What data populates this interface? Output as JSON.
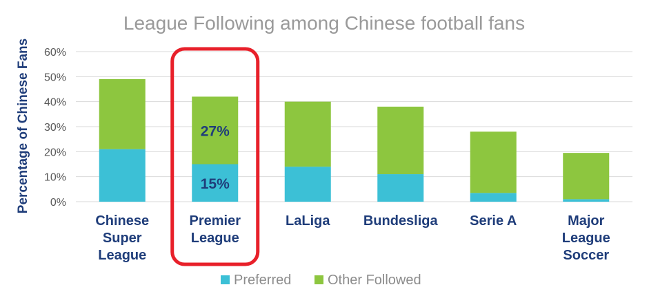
{
  "chart_data": {
    "type": "bar",
    "stacked": true,
    "title": "League Following among Chinese football fans",
    "ylabel": "Percentage of Chinese Fans",
    "xlabel": "",
    "ylim": [
      0,
      60
    ],
    "yticks": [
      "0%",
      "10%",
      "20%",
      "30%",
      "40%",
      "50%",
      "60%"
    ],
    "grid": true,
    "legend_position": "bottom",
    "categories": [
      [
        "Chinese",
        "Super",
        "League"
      ],
      [
        "Premier",
        "League"
      ],
      [
        "LaLiga"
      ],
      [
        "Bundesliga"
      ],
      [
        "Serie A"
      ],
      [
        "Major",
        "League",
        "Soccer"
      ]
    ],
    "series": [
      {
        "name": "Preferred",
        "color": "#3cc0d6",
        "values": [
          21,
          15,
          14,
          11,
          3.5,
          1
        ]
      },
      {
        "name": "Other Followed",
        "color": "#8dc63f",
        "values": [
          28,
          27,
          26,
          27,
          24.5,
          18.5
        ]
      }
    ],
    "data_labels": [
      {
        "category_index": 1,
        "series_index": 0,
        "text": "15%"
      },
      {
        "category_index": 1,
        "series_index": 1,
        "text": "27%"
      }
    ],
    "highlight": {
      "category_index": 1,
      "color": "#e8202a"
    }
  }
}
